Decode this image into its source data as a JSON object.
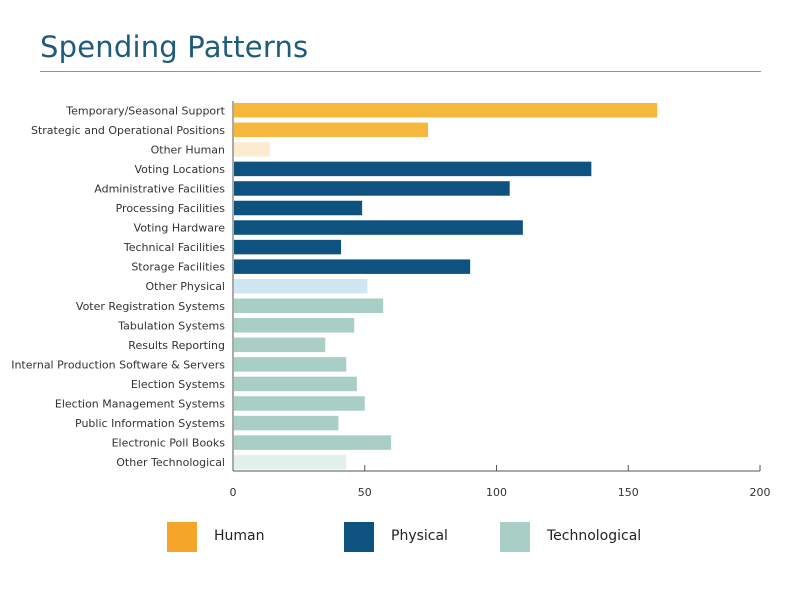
{
  "header": {
    "title": "Spending Patterns"
  },
  "colors": {
    "human": "#f5b83d",
    "human_other": "#fdebcf",
    "physical": "#0e5280",
    "physical_other": "#d2e5f3",
    "technological": "#a8cec6",
    "technological_other": "#e3f1ed",
    "title": "#1f5b7a",
    "axis": "#555555"
  },
  "chart_data": {
    "type": "bar",
    "orientation": "horizontal",
    "title": "Spending Patterns",
    "xlabel": "",
    "ylabel": "",
    "xlim": [
      0,
      200
    ],
    "xticks": [
      0,
      50,
      100,
      150,
      200
    ],
    "grid": false,
    "legend_position": "bottom",
    "categories": [
      "Temporary/Seasonal Support",
      "Strategic and Operational Positions",
      "Other Human",
      "Voting Locations",
      "Administrative Facilities",
      "Processing Facilities",
      "Voting Hardware",
      "Technical Facilities",
      "Storage Facilities",
      "Other Physical",
      "Voter Registration Systems",
      "Tabulation Systems",
      "Results Reporting",
      "Internal Production Software & Servers",
      "Election Systems",
      "Election Management Systems",
      "Public Information Systems",
      "Electronic Poll Books",
      "Other Technological"
    ],
    "values": [
      161,
      74,
      14,
      136,
      105,
      49,
      110,
      41,
      90,
      51,
      57,
      46,
      35,
      43,
      47,
      50,
      40,
      60,
      43
    ],
    "groups": [
      "human",
      "human",
      "human_other",
      "physical",
      "physical",
      "physical",
      "physical",
      "physical",
      "physical",
      "physical_other",
      "technological",
      "technological",
      "technological",
      "technological",
      "technological",
      "technological",
      "technological",
      "technological",
      "technological_other"
    ],
    "legend": [
      {
        "name": "Human",
        "color": "#f5a52a"
      },
      {
        "name": "Physical",
        "color": "#0e5280"
      },
      {
        "name": "Technological",
        "color": "#a8cec6"
      }
    ]
  }
}
